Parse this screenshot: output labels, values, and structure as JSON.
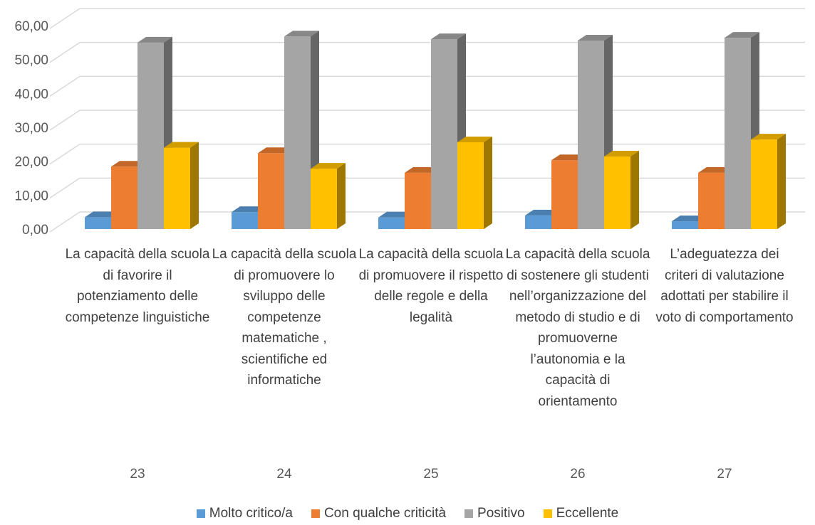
{
  "chart_data": {
    "type": "bar3d",
    "categories": [
      "La capacità della scuola di favorire il potenziamento delle competenze linguistiche",
      "La capacità della scuola di promuovere lo sviluppo delle competenze matematiche , scientifiche ed informatiche",
      "La capacità della scuola di promuovere il rispetto delle regole e della legalità",
      "La capacità della scuola di sostenere gli studenti nell’organizzazione del metodo di studio e di promuoverne l’autonomia e la capacità di orientamento",
      "L’adeguatezza dei criteri di valutazione adottati per stabilire il voto di comportamento"
    ],
    "category_groups": [
      23,
      24,
      25,
      26,
      27
    ],
    "series": [
      {
        "name": "Molto critico/a",
        "color": "#5b9bd5",
        "values": [
          3.5,
          5.0,
          3.4,
          4.0,
          2.3
        ]
      },
      {
        "name": "Con qualche criticità",
        "color": "#ed7d31",
        "values": [
          18.4,
          22.4,
          16.6,
          20.3,
          16.6
        ]
      },
      {
        "name": "Positivo",
        "color": "#a5a5a5",
        "values": [
          55.0,
          56.8,
          56.0,
          55.6,
          56.4
        ]
      },
      {
        "name": "Eccellente",
        "color": "#ffc000",
        "values": [
          24.0,
          17.8,
          25.6,
          21.4,
          26.4
        ]
      }
    ],
    "ylim": [
      0,
      60
    ],
    "yticks": [
      {
        "value": 0,
        "label": "0,00"
      },
      {
        "value": 10,
        "label": "10,00"
      },
      {
        "value": 20,
        "label": "20,00"
      },
      {
        "value": 30,
        "label": "30,00"
      },
      {
        "value": 40,
        "label": "40,00"
      },
      {
        "value": 50,
        "label": "50,00"
      },
      {
        "value": 60,
        "label": "60,00"
      }
    ],
    "grid": true,
    "legend": "bottom"
  }
}
